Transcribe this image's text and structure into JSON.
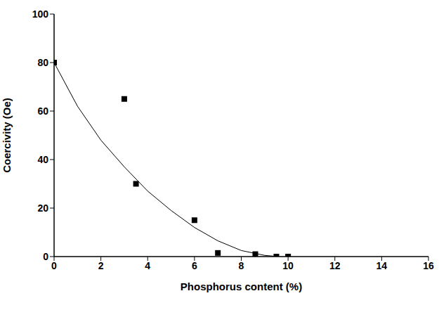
{
  "chart_data": {
    "type": "scatter",
    "xlabel": "Phosphorus content (%)",
    "ylabel": "Coercivity (Oe)",
    "xlim": [
      0,
      16
    ],
    "xticks": [
      0,
      2,
      4,
      6,
      8,
      10,
      12,
      14,
      16
    ],
    "ylim": [
      0,
      100
    ],
    "yticks": [
      0,
      20,
      40,
      60,
      80,
      100
    ],
    "grid": false,
    "series": [
      {
        "type": "scatter",
        "marker": "square",
        "color": "#000000",
        "x": [
          0,
          3,
          3.5,
          6,
          7,
          8.6,
          9.5,
          10
        ],
        "values": [
          80,
          65,
          30,
          15,
          1.5,
          1,
          0,
          0
        ]
      },
      {
        "type": "line",
        "line_style": "solid",
        "color": "#000000",
        "x": [
          0,
          1,
          2,
          3,
          4,
          5,
          6,
          7,
          8,
          9,
          9.6
        ],
        "values": [
          80,
          62,
          48,
          37,
          27,
          19,
          12,
          6.5,
          2.5,
          0.5,
          0
        ]
      }
    ]
  }
}
